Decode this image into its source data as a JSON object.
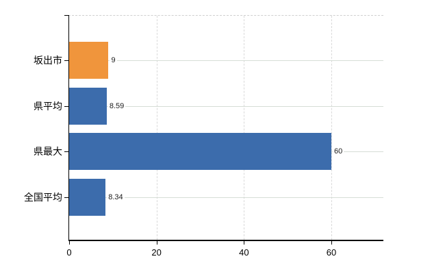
{
  "chart_data": {
    "type": "bar",
    "orientation": "horizontal",
    "title": "",
    "categories": [
      "坂出市",
      "県平均",
      "県最大",
      "全国平均"
    ],
    "values": [
      9,
      8.59,
      60,
      8.34
    ],
    "value_labels": [
      "9",
      "8.59",
      "60",
      "8.34"
    ],
    "bar_colors": [
      "#F0953C",
      "#3C6CAC",
      "#3C6CAC",
      "#3C6CAC"
    ],
    "x_ticks": [
      0,
      20,
      40,
      60
    ],
    "x_tick_labels": [
      "0",
      "20",
      "40",
      "60"
    ],
    "xlim": [
      0,
      71.9
    ],
    "grid": true,
    "legend": false
  },
  "colors": {
    "bar_orange": "#F0953C",
    "bar_blue": "#3C6CAC",
    "axis": "#000000",
    "h_gridline": "#d6ddd6",
    "v_gridline": "#d9d9d9",
    "plot_border_dashed": "#cfcfcf",
    "background": "#ffffff",
    "text": "#000000"
  }
}
